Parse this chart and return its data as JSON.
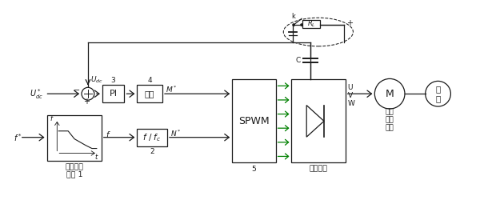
{
  "line_color": "#1a1a1a",
  "udc_ref": "$U^*_{dc}$",
  "udc_fb": "$U_{dc}$",
  "f_ref": "$f^*$",
  "f_out": "$f$",
  "M_star": "$M^*$",
  "N_star": "$N^*$",
  "pi_text": "PI",
  "lim_text": "限幅",
  "fc_text": "$f\\ /\\ f_c$",
  "spwm_text": "SPWM",
  "motor_text": "M",
  "flywheel_text": "飞\n轮",
  "highspeed_text": "高速\n异步\n电机",
  "power_mod_text": "功率模块",
  "curve_text1": "飞轮降速",
  "curve_text2": "曲线 1",
  "k_text": "k",
  "RL_text": "$R_L$",
  "C_text": "C",
  "U_text": "U",
  "V_text": "V",
  "W_text": "W",
  "num3": "3",
  "num4": "4",
  "num2": "2",
  "num5": "5",
  "plus": "+",
  "minus": "−"
}
